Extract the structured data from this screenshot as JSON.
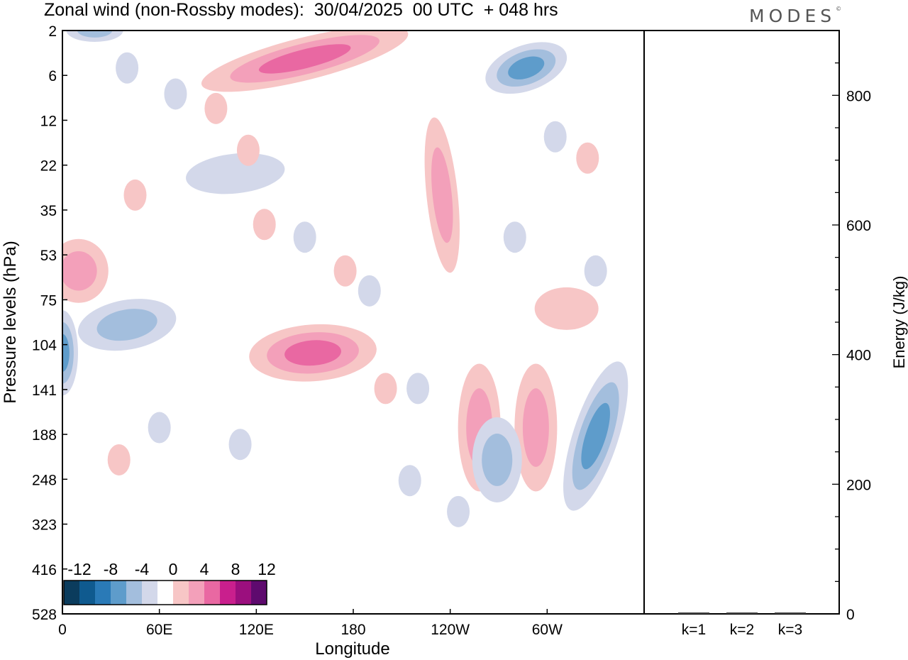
{
  "header": {
    "title": "Zonal wind (non-Rossby modes):  30/04/2025  00 UTC  + 048 hrs",
    "brand": "MODES",
    "brand_mark": "©"
  },
  "colors": {
    "contour_scale": [
      "#0b3c5d",
      "#0f5a8f",
      "#2a7ab7",
      "#5e9ccb",
      "#a3bedd",
      "#d3d8ea",
      "#ffffff",
      "#f7c6c6",
      "#f3a0ba",
      "#e968a2",
      "#c91f8d",
      "#9b0f7e",
      "#5e0a6e"
    ],
    "positive_light": "#f7c6c6",
    "positive_mid": "#f3a0ba",
    "positive_strong": "#e968a2",
    "negative_light": "#d3d8ea",
    "negative_mid": "#a3bedd",
    "negative_strong": "#5e9ccb",
    "negative_core": "#2a7ab7"
  },
  "chart_data": [
    {
      "type": "heatmap",
      "title": "Zonal wind (non-Rossby modes):  30/04/2025  00 UTC  + 048 hrs",
      "xlabel": "Longitude",
      "ylabel": "Pressure levels (hPa)",
      "x_tick_labels": [
        "0",
        "60E",
        "120E",
        "180",
        "120W",
        "60W"
      ],
      "y_tick_labels": [
        "2",
        "6",
        "12",
        "22",
        "35",
        "53",
        "75",
        "104",
        "141",
        "188",
        "248",
        "323",
        "416",
        "528"
      ],
      "y_scale": "reversed pressure levels",
      "legend": {
        "placement": "bottom-left",
        "labels": [
          "-12",
          "-8",
          "-4",
          "0",
          "4",
          "8",
          "12"
        ],
        "levels": [
          -12,
          -10,
          -8,
          -6,
          -4,
          -2,
          0,
          2,
          4,
          6,
          8,
          10,
          12
        ]
      },
      "features": [
        {
          "sign": "positive",
          "lon": 150,
          "level": 4,
          "peak": 10
        },
        {
          "sign": "positive",
          "lon": 235,
          "level": 30,
          "peak": 6
        },
        {
          "sign": "positive",
          "lon": 155,
          "level": 110,
          "peak": 8
        },
        {
          "sign": "positive",
          "lon": 10,
          "level": 60,
          "peak": 6
        },
        {
          "sign": "positive",
          "lon": 258,
          "level": 180,
          "peak": 6
        },
        {
          "sign": "positive",
          "lon": 293,
          "level": 180,
          "peak": 6
        },
        {
          "sign": "positive",
          "lon": 312,
          "level": 80,
          "peak": 4
        },
        {
          "sign": "negative",
          "lon": 287,
          "level": 5,
          "peak": -10
        },
        {
          "sign": "negative",
          "lon": 0,
          "level": 110,
          "peak": -8
        },
        {
          "sign": "negative",
          "lon": 40,
          "level": 90,
          "peak": -6
        },
        {
          "sign": "negative",
          "lon": 330,
          "level": 190,
          "peak": -10
        },
        {
          "sign": "negative",
          "lon": 269,
          "level": 220,
          "peak": -6
        },
        {
          "sign": "negative",
          "lon": 20,
          "level": 2,
          "peak": -6
        },
        {
          "sign": "negative",
          "lon": 107,
          "level": 24,
          "peak": -4
        }
      ]
    },
    {
      "type": "bar",
      "xlabel": "",
      "ylabel": "Energy (J/kg)",
      "categories": [
        "k=1",
        "k=2",
        "k=3"
      ],
      "values": [
        1,
        1,
        1
      ],
      "ylim": [
        0,
        900
      ],
      "y_tick_labels": [
        "0",
        "200",
        "400",
        "600",
        "800"
      ]
    }
  ]
}
